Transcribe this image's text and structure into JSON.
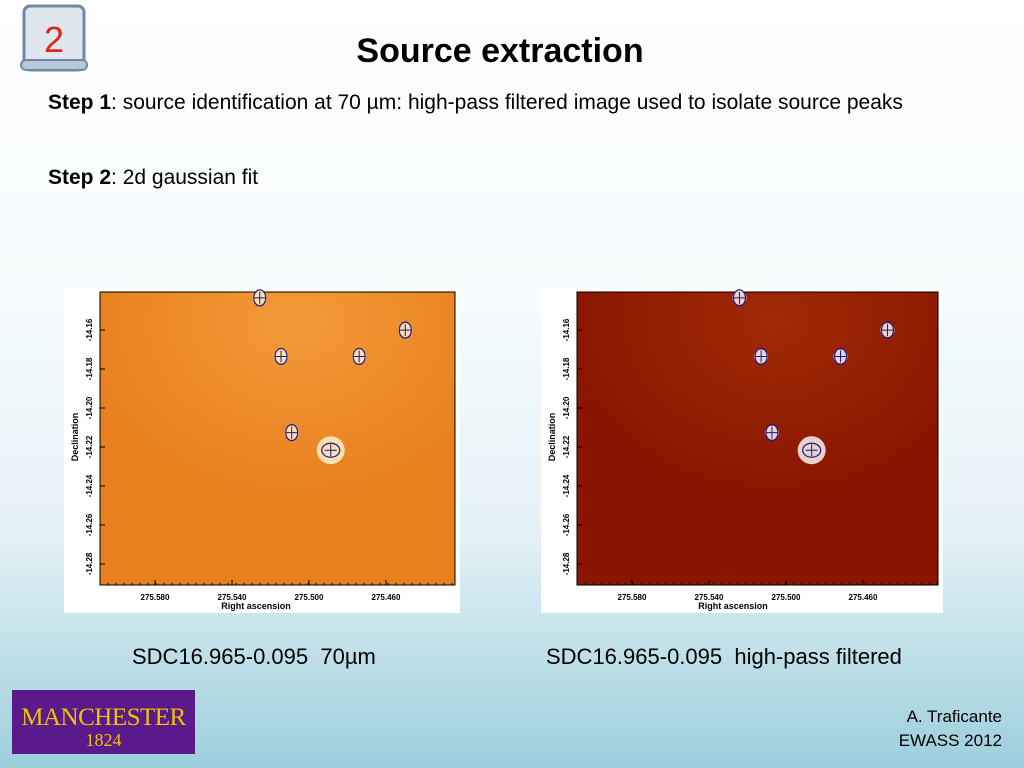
{
  "badge": "2",
  "title": "Source extraction",
  "steps": [
    {
      "label": "Step 1",
      "text": ": source identification at 70 µm: high-pass filtered image used to isolate source peaks"
    },
    {
      "label": "Step 2",
      "text": ": 2d gaussian fit"
    }
  ],
  "figures": [
    {
      "caption": "SDC16.965-0.095  70µm",
      "ylabel": "Declination",
      "xlabel": "Right ascension",
      "yticks": [
        "-14.16",
        "-14.18",
        "-14.20",
        "-14.22",
        "-14.24",
        "-14.26",
        "-14.28"
      ],
      "xticks": [
        "275.580",
        "275.540",
        "275.500",
        "275.460"
      ]
    },
    {
      "caption": "SDC16.965-0.095  high-pass filtered",
      "ylabel": "Declination",
      "xlabel": "Right ascension",
      "yticks": [
        "-14.16",
        "-14.18",
        "-14.20",
        "-14.22",
        "-14.24",
        "-14.26",
        "-14.28"
      ],
      "xticks": [
        "275.580",
        "275.540",
        "275.500",
        "275.460"
      ]
    }
  ],
  "logo": {
    "name": "MANCHESTER",
    "year": "1824"
  },
  "credits": [
    "A. Traficante",
    "EWASS 2012"
  ]
}
